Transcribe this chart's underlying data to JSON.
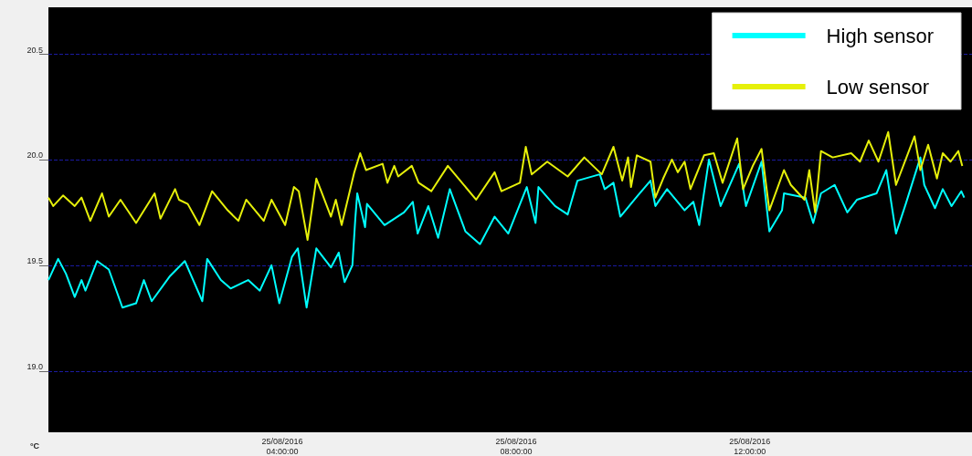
{
  "chart_data": {
    "type": "line",
    "ylabel": "°C",
    "xlim": [
      "2016-08-25T00:00",
      "2016-08-25T15:48"
    ],
    "ylim": [
      18.71,
      20.72
    ],
    "yticks": [
      {
        "value": 19,
        "label": "19.0"
      },
      {
        "value": 19.5,
        "label": "19.5"
      },
      {
        "value": 20,
        "label": "20.0"
      },
      {
        "value": 20.5,
        "label": "20.5"
      }
    ],
    "xticks": [
      {
        "value": "2016-08-25T04:00",
        "label": "25/08/2016\n04:00:00"
      },
      {
        "value": "2016-08-25T08:00",
        "label": "25/08/2016\n08:00:00"
      },
      {
        "value": "2016-08-25T12:00",
        "label": "25/08/2016\n12:00:00"
      }
    ],
    "grid": "y",
    "legend": "top right",
    "series": [
      {
        "name": "High sensor",
        "color": "#00ffff",
        "x": [
          "2016-08-25T00:00",
          "2016-08-25T00:10",
          "2016-08-25T00:18",
          "2016-08-25T00:27",
          "2016-08-25T00:34",
          "2016-08-25T00:38",
          "2016-08-25T00:50",
          "2016-08-25T01:02",
          "2016-08-25T01:16",
          "2016-08-25T01:30",
          "2016-08-25T01:38",
          "2016-08-25T01:46",
          "2016-08-25T02:05",
          "2016-08-25T02:20",
          "2016-08-25T02:38",
          "2016-08-25T02:43",
          "2016-08-25T02:57",
          "2016-08-25T03:07",
          "2016-08-25T03:25",
          "2016-08-25T03:37",
          "2016-08-25T03:49",
          "2016-08-25T03:57",
          "2016-08-25T04:10",
          "2016-08-25T04:16",
          "2016-08-25T04:25",
          "2016-08-25T04:35",
          "2016-08-25T04:50",
          "2016-08-25T04:58",
          "2016-08-25T05:04",
          "2016-08-25T05:12",
          "2016-08-25T05:15",
          "2016-08-25T05:17",
          "2016-08-25T05:25",
          "2016-08-25T05:27",
          "2016-08-25T05:45",
          "2016-08-25T06:05",
          "2016-08-25T06:14",
          "2016-08-25T06:19",
          "2016-08-25T06:30",
          "2016-08-25T06:40",
          "2016-08-25T06:52",
          "2016-08-25T07:08",
          "2016-08-25T07:23",
          "2016-08-25T07:38",
          "2016-08-25T07:52",
          "2016-08-25T08:11",
          "2016-08-25T08:20",
          "2016-08-25T08:23",
          "2016-08-25T08:40",
          "2016-08-25T08:53",
          "2016-08-25T09:03",
          "2016-08-25T09:26",
          "2016-08-25T09:31",
          "2016-08-25T09:40",
          "2016-08-25T09:47",
          "2016-08-25T10:05",
          "2016-08-25T10:18",
          "2016-08-25T10:23",
          "2016-08-25T10:35",
          "2016-08-25T10:53",
          "2016-08-25T11:02",
          "2016-08-25T11:08",
          "2016-08-25T11:18",
          "2016-08-25T11:30",
          "2016-08-25T11:49",
          "2016-08-25T11:56",
          "2016-08-25T12:12",
          "2016-08-25T12:20",
          "2016-08-25T12:33",
          "2016-08-25T12:35",
          "2016-08-25T12:57",
          "2016-08-25T13:05",
          "2016-08-25T13:13",
          "2016-08-25T13:27",
          "2016-08-25T13:40",
          "2016-08-25T13:50",
          "2016-08-25T14:10",
          "2016-08-25T14:20",
          "2016-08-25T14:30",
          "2016-08-25T14:40",
          "2016-08-25T14:55",
          "2016-08-25T14:59",
          "2016-08-25T15:10",
          "2016-08-25T15:18",
          "2016-08-25T15:27",
          "2016-08-25T15:37",
          "2016-08-25T15:40"
        ],
        "values": [
          19.43,
          19.53,
          19.46,
          19.35,
          19.43,
          19.38,
          19.52,
          19.48,
          19.3,
          19.32,
          19.43,
          19.33,
          19.45,
          19.52,
          19.33,
          19.53,
          19.43,
          19.39,
          19.43,
          19.38,
          19.5,
          19.32,
          19.54,
          19.58,
          19.3,
          19.58,
          19.49,
          19.56,
          19.42,
          19.5,
          19.72,
          19.84,
          19.68,
          19.79,
          19.69,
          19.75,
          19.8,
          19.65,
          19.78,
          19.63,
          19.86,
          19.66,
          19.6,
          19.73,
          19.65,
          19.87,
          19.7,
          19.87,
          19.78,
          19.74,
          19.9,
          19.93,
          19.86,
          19.89,
          19.73,
          19.83,
          19.9,
          19.78,
          19.86,
          19.76,
          19.8,
          19.69,
          20,
          19.78,
          19.98,
          19.78,
          19.99,
          19.66,
          19.76,
          19.84,
          19.82,
          19.7,
          19.84,
          19.88,
          19.75,
          19.81,
          19.84,
          19.95,
          19.65,
          19.79,
          20.01,
          19.88,
          19.77,
          19.86,
          19.78,
          19.85,
          19.82
        ]
      },
      {
        "name": "Low sensor",
        "color": "#e6f00a",
        "x": [
          "2016-08-25T00:00",
          "2016-08-25T00:05",
          "2016-08-25T00:15",
          "2016-08-25T00:27",
          "2016-08-25T00:34",
          "2016-08-25T00:43",
          "2016-08-25T00:55",
          "2016-08-25T01:02",
          "2016-08-25T01:14",
          "2016-08-25T01:30",
          "2016-08-25T01:49",
          "2016-08-25T01:55",
          "2016-08-25T02:10",
          "2016-08-25T02:14",
          "2016-08-25T02:23",
          "2016-08-25T02:35",
          "2016-08-25T02:48",
          "2016-08-25T03:04",
          "2016-08-25T03:15",
          "2016-08-25T03:23",
          "2016-08-25T03:41",
          "2016-08-25T03:49",
          "2016-08-25T04:03",
          "2016-08-25T04:12",
          "2016-08-25T04:17",
          "2016-08-25T04:26",
          "2016-08-25T04:35",
          "2016-08-25T04:40",
          "2016-08-25T04:50",
          "2016-08-25T04:55",
          "2016-08-25T05:01",
          "2016-08-25T05:14",
          "2016-08-25T05:20",
          "2016-08-25T05:26",
          "2016-08-25T05:43",
          "2016-08-25T05:48",
          "2016-08-25T05:55",
          "2016-08-25T05:59",
          "2016-08-25T06:13",
          "2016-08-25T06:20",
          "2016-08-25T06:33",
          "2016-08-25T06:50",
          "2016-08-25T07:01",
          "2016-08-25T07:19",
          "2016-08-25T07:38",
          "2016-08-25T07:45",
          "2016-08-25T08:04",
          "2016-08-25T08:10",
          "2016-08-25T08:16",
          "2016-08-25T08:32",
          "2016-08-25T08:53",
          "2016-08-25T09:10",
          "2016-08-25T09:28",
          "2016-08-25T09:40",
          "2016-08-25T09:49",
          "2016-08-25T09:55",
          "2016-08-25T09:58",
          "2016-08-25T10:04",
          "2016-08-25T10:18",
          "2016-08-25T10:23",
          "2016-08-25T10:31",
          "2016-08-25T10:40",
          "2016-08-25T10:46",
          "2016-08-25T10:53",
          "2016-08-25T10:59",
          "2016-08-25T11:13",
          "2016-08-25T11:23",
          "2016-08-25T11:32",
          "2016-08-25T11:47",
          "2016-08-25T11:53",
          "2016-08-25T12:03",
          "2016-08-25T12:12",
          "2016-08-25T12:20",
          "2016-08-25T12:35",
          "2016-08-25T12:42",
          "2016-08-25T12:56",
          "2016-08-25T13:01",
          "2016-08-25T13:07",
          "2016-08-25T13:13",
          "2016-08-25T13:25",
          "2016-08-25T13:44",
          "2016-08-25T13:53",
          "2016-08-25T14:02",
          "2016-08-25T14:12",
          "2016-08-25T14:22",
          "2016-08-25T14:30",
          "2016-08-25T14:49",
          "2016-08-25T14:55",
          "2016-08-25T15:03",
          "2016-08-25T15:12",
          "2016-08-25T15:18",
          "2016-08-25T15:26",
          "2016-08-25T15:34",
          "2016-08-25T15:38"
        ],
        "values": [
          19.82,
          19.78,
          19.83,
          19.78,
          19.82,
          19.71,
          19.84,
          19.73,
          19.81,
          19.7,
          19.84,
          19.72,
          19.86,
          19.81,
          19.79,
          19.69,
          19.85,
          19.76,
          19.71,
          19.81,
          19.71,
          19.81,
          19.69,
          19.87,
          19.85,
          19.62,
          19.91,
          19.85,
          19.73,
          19.81,
          19.69,
          19.94,
          20.03,
          19.95,
          19.98,
          19.89,
          19.97,
          19.92,
          19.97,
          19.89,
          19.85,
          19.97,
          19.91,
          19.81,
          19.94,
          19.85,
          19.89,
          20.06,
          19.93,
          19.99,
          19.92,
          20.01,
          19.93,
          20.06,
          19.9,
          20.01,
          19.87,
          20.02,
          19.99,
          19.82,
          19.91,
          20,
          19.94,
          19.99,
          19.86,
          20.02,
          20.03,
          19.89,
          20.1,
          19.86,
          19.97,
          20.05,
          19.76,
          19.95,
          19.88,
          19.81,
          19.95,
          19.75,
          20.04,
          20.01,
          20.03,
          19.99,
          20.09,
          19.99,
          20.13,
          19.88,
          20.11,
          19.95,
          20.07,
          19.91,
          20.03,
          19.99,
          20.04,
          19.97
        ]
      }
    ]
  }
}
